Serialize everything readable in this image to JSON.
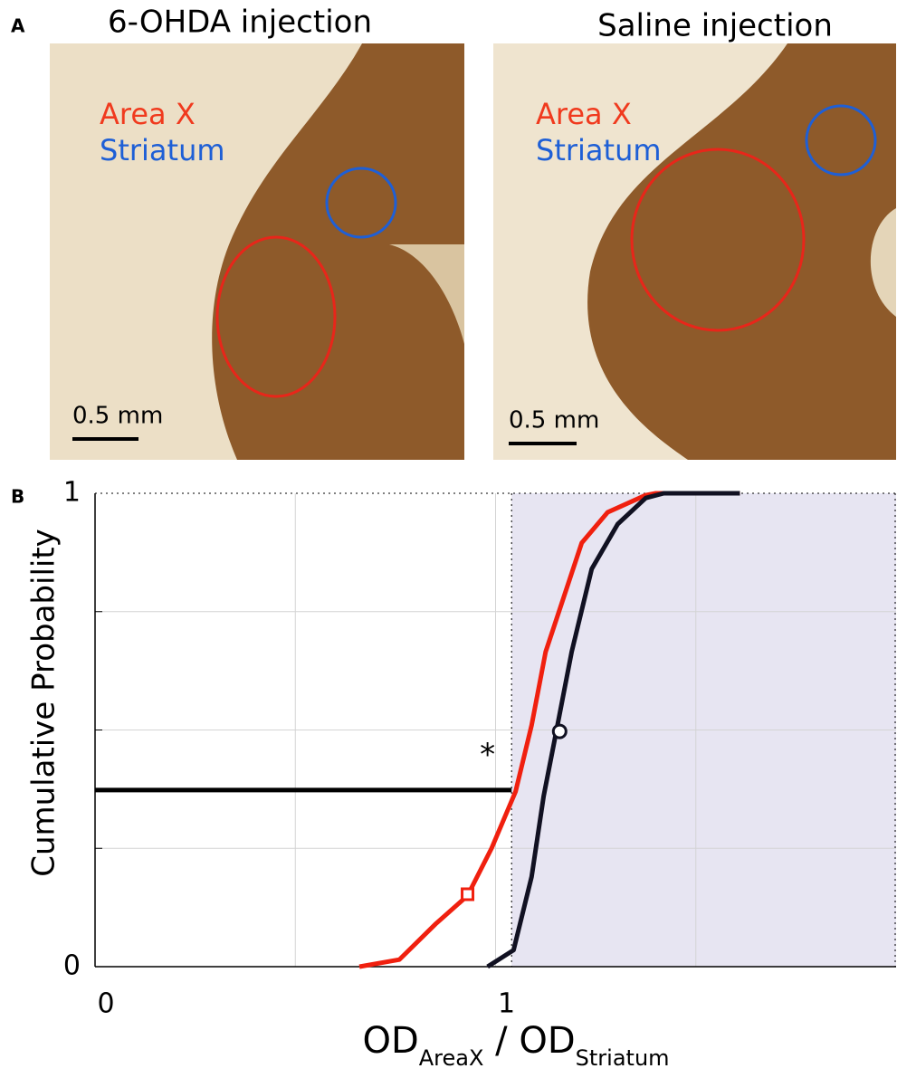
{
  "panel_a": {
    "label": "A",
    "images": [
      {
        "title": "6-OHDA injection",
        "region_labels": [
          {
            "text": "Area X",
            "color": "#f03a1e"
          },
          {
            "text": "Striatum",
            "color": "#1e5fd6"
          }
        ],
        "scale_bar": "0.5 mm"
      },
      {
        "title": "Saline injection",
        "region_labels": [
          {
            "text": "Area X",
            "color": "#f03a1e"
          },
          {
            "text": "Striatum",
            "color": "#1e5fd6"
          }
        ],
        "scale_bar": "0.5 mm"
      }
    ]
  },
  "chart_data": {
    "type": "line",
    "panel_label": "B",
    "ylabel": "Cumulative Probability",
    "xlabel_parts": [
      {
        "text": "OD",
        "sub": false
      },
      {
        "text": "AreaX",
        "sub": true
      },
      {
        "text": " / OD",
        "sub": false
      },
      {
        "text": "Striatum",
        "sub": true
      }
    ],
    "xlim": [
      0,
      2
    ],
    "ylim": [
      0,
      1
    ],
    "xticks": [
      0,
      1
    ],
    "yticks": [
      0,
      1
    ],
    "xgrid": [
      0.5,
      1,
      1.5
    ],
    "ygrid": [
      0.25,
      0.5,
      0.75
    ],
    "grid": true,
    "shaded_region": {
      "x": [
        1.04,
        2
      ],
      "color": "#e7e5f2"
    },
    "hline": {
      "y": 0.373,
      "x": [
        0,
        1.04
      ],
      "color": "#000000"
    },
    "annotations": [
      {
        "text": "*",
        "x": 0.98,
        "y": 0.445
      }
    ],
    "series": [
      {
        "color": "#f0200f",
        "x": [
          0.66,
          0.76,
          0.85,
          0.93,
          0.99,
          1.05,
          1.09,
          1.125,
          1.17,
          1.215,
          1.28,
          1.375,
          1.4,
          1.61
        ],
        "values": [
          0,
          0.015,
          0.09,
          0.15,
          0.25,
          0.37,
          0.51,
          0.665,
          0.78,
          0.895,
          0.96,
          0.996,
          1,
          1
        ],
        "marker": {
          "x": 0.93,
          "y": 0.153,
          "shape": "square"
        }
      },
      {
        "color": "#111122",
        "x": [
          0.98,
          1.045,
          1.09,
          1.12,
          1.15,
          1.19,
          1.24,
          1.305,
          1.375,
          1.42,
          1.61
        ],
        "values": [
          0,
          0.035,
          0.19,
          0.36,
          0.49,
          0.665,
          0.84,
          0.935,
          0.99,
          1,
          1
        ],
        "marker": {
          "x": 1.16,
          "y": 0.497,
          "shape": "circle"
        }
      }
    ]
  }
}
